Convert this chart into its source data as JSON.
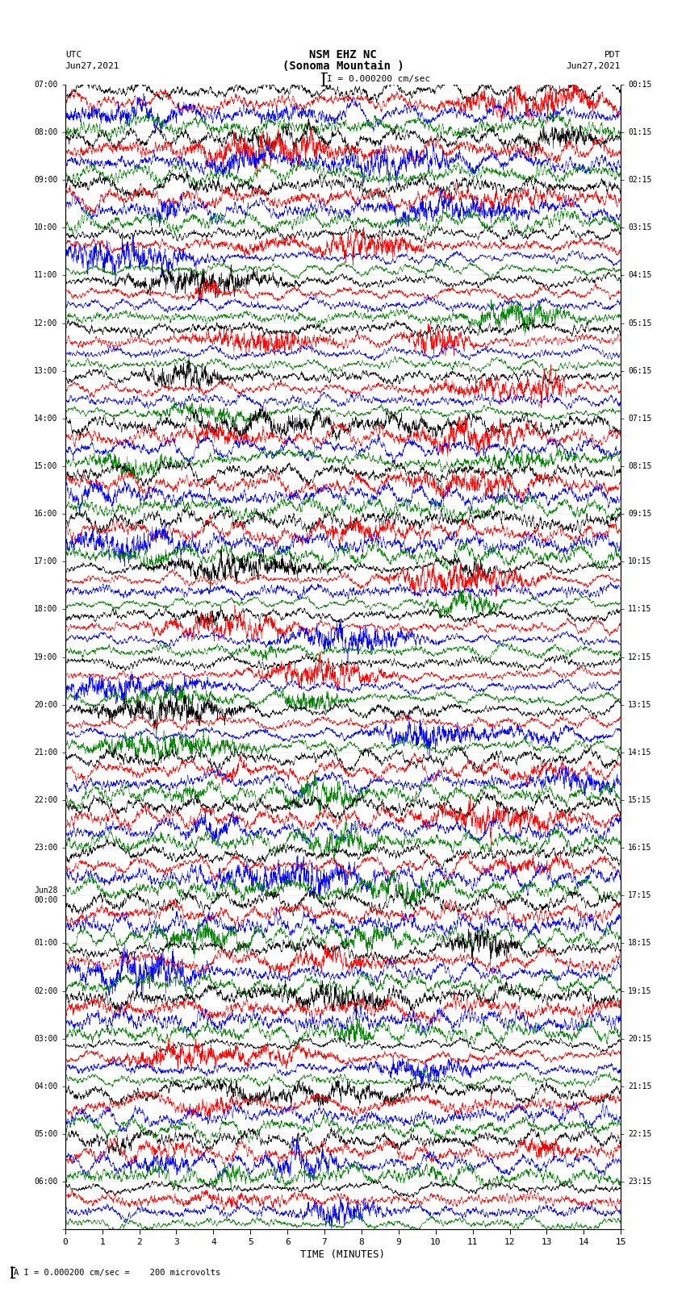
{
  "title_line1": "NSM EHZ NC",
  "title_line2": "(Sonoma Mountain )",
  "title_scale": "I = 0.000200 cm/sec",
  "left_header_tz": "UTC",
  "left_header_date": "Jun27,2021",
  "right_header_tz": "PDT",
  "right_header_date": "Jun27,2021",
  "xlabel": "TIME (MINUTES)",
  "footnote": "A I = 0.000200 cm/sec =    200 microvolts",
  "utc_labels": [
    "07:00",
    "08:00",
    "09:00",
    "10:00",
    "11:00",
    "12:00",
    "13:00",
    "14:00",
    "15:00",
    "16:00",
    "17:00",
    "18:00",
    "19:00",
    "20:00",
    "21:00",
    "22:00",
    "23:00",
    "Jun28\n00:00",
    "01:00",
    "02:00",
    "03:00",
    "04:00",
    "05:00",
    "06:00"
  ],
  "pdt_labels": [
    "00:15",
    "01:15",
    "02:15",
    "03:15",
    "04:15",
    "05:15",
    "06:15",
    "07:15",
    "08:15",
    "09:15",
    "10:15",
    "11:15",
    "12:15",
    "13:15",
    "14:15",
    "15:15",
    "16:15",
    "17:15",
    "18:15",
    "19:15",
    "20:15",
    "21:15",
    "22:15",
    "23:15"
  ],
  "trace_colors": [
    "black",
    "red",
    "blue",
    "green"
  ],
  "n_hours": 24,
  "traces_per_hour": 4,
  "background_color": "white",
  "fig_width": 8.5,
  "fig_height": 16.13,
  "dpi": 100,
  "xmin": 0,
  "xmax": 15,
  "xticks": [
    0,
    1,
    2,
    3,
    4,
    5,
    6,
    7,
    8,
    9,
    10,
    11,
    12,
    13,
    14,
    15
  ],
  "high_activity_hours": [
    0,
    1,
    2,
    7,
    8,
    9,
    14,
    15,
    16,
    17,
    18,
    19,
    21,
    22
  ],
  "seed": 42
}
